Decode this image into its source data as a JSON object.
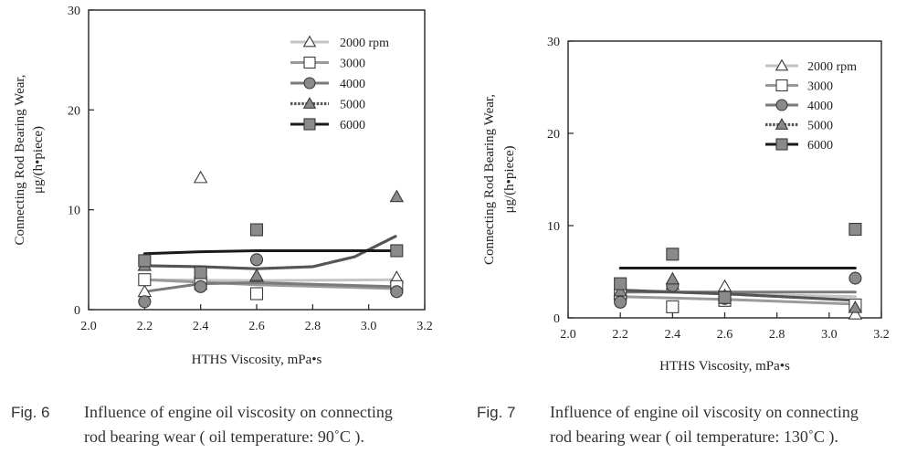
{
  "chart_data": [
    {
      "type": "scatter",
      "figure_label": "Fig. 6",
      "caption": "Influence of engine oil viscosity on connecting rod bearing wear ( oil temperature: 90˚C ).",
      "caption_lines": [
        "Influence of engine oil viscosity on connecting",
        "rod bearing wear ( oil temperature: 90˚C )."
      ],
      "xlabel": "HTHS Viscosity, mPa•s",
      "ylabel_lines": [
        "Connecting Rod Bearing Wear,",
        "μg/(h•piece)"
      ],
      "xlim": [
        2.0,
        3.2
      ],
      "ylim": [
        0,
        30
      ],
      "x_ticks": [
        "2.0",
        "2.2",
        "2.4",
        "2.6",
        "2.8",
        "3.0",
        "3.2"
      ],
      "y_ticks": [
        "0",
        "10",
        "20",
        "30"
      ],
      "grid": false,
      "legend_position": "top-right",
      "series": [
        {
          "name": "2000 rpm",
          "marker": "triangle-open",
          "line_color": "#c4c4c4",
          "line_style": "solid",
          "points": [
            [
              2.2,
              1.8
            ],
            [
              2.4,
              13.2
            ],
            [
              2.6,
              3.3
            ],
            [
              3.1,
              3.2
            ]
          ],
          "fit": [
            [
              2.2,
              3.0
            ],
            [
              2.6,
              2.9
            ],
            [
              3.1,
              3.0
            ]
          ]
        },
        {
          "name": "3000",
          "marker": "square-open",
          "line_color": "#9a9a9a",
          "line_style": "solid",
          "points": [
            [
              2.2,
              3.0
            ],
            [
              2.4,
              2.6
            ],
            [
              2.6,
              1.6
            ],
            [
              3.1,
              2.3
            ]
          ],
          "fit": [
            [
              2.2,
              3.0
            ],
            [
              2.6,
              2.5
            ],
            [
              3.1,
              2.1
            ]
          ]
        },
        {
          "name": "4000",
          "marker": "circle-filled",
          "line_color": "#7a7a7a",
          "line_style": "solid",
          "points": [
            [
              2.2,
              0.8
            ],
            [
              2.4,
              2.3
            ],
            [
              2.6,
              5.0
            ],
            [
              3.1,
              1.8
            ]
          ],
          "fit": [
            [
              2.2,
              1.8
            ],
            [
              2.4,
              2.6
            ],
            [
              2.6,
              2.7
            ],
            [
              3.1,
              2.3
            ]
          ]
        },
        {
          "name": "5000",
          "marker": "triangle-filled",
          "line_color": "#555555",
          "line_style": "dashed",
          "points": [
            [
              2.2,
              4.4
            ],
            [
              2.4,
              3.7
            ],
            [
              2.6,
              3.4
            ],
            [
              3.1,
              11.3
            ]
          ],
          "fit": [
            [
              2.2,
              4.4
            ],
            [
              2.4,
              4.3
            ],
            [
              2.6,
              4.1
            ],
            [
              2.8,
              4.3
            ],
            [
              2.95,
              5.3
            ],
            [
              3.1,
              7.4
            ]
          ]
        },
        {
          "name": "6000",
          "marker": "square-filled",
          "line_color": "#1a1a1a",
          "line_style": "solid",
          "points": [
            [
              2.2,
              4.9
            ],
            [
              2.4,
              3.7
            ],
            [
              2.6,
              8.0
            ],
            [
              3.1,
              5.9
            ]
          ],
          "fit": [
            [
              2.2,
              5.6
            ],
            [
              2.4,
              5.8
            ],
            [
              2.6,
              5.9
            ],
            [
              3.1,
              5.9
            ]
          ]
        }
      ]
    },
    {
      "type": "scatter",
      "figure_label": "Fig. 7",
      "caption": "Influence of engine oil viscosity on connecting rod bearing wear ( oil temperature: 130˚C ).",
      "caption_lines": [
        "Influence of engine oil viscosity on connecting",
        "rod bearing wear ( oil temperature: 130˚C )."
      ],
      "xlabel": "HTHS Viscosity, mPa•s",
      "ylabel_lines": [
        "Connecting Rod Bearing Wear,",
        "μg/(h•piece)"
      ],
      "xlim": [
        2.0,
        3.2
      ],
      "ylim": [
        0,
        30
      ],
      "x_ticks": [
        "2.0",
        "2.2",
        "2.4",
        "2.6",
        "2.8",
        "3.0",
        "3.2"
      ],
      "y_ticks": [
        "0",
        "10",
        "20",
        "30"
      ],
      "grid": false,
      "legend_position": "top-right",
      "series": [
        {
          "name": "2000 rpm",
          "marker": "triangle-open",
          "line_color": "#c4c4c4",
          "line_style": "solid",
          "points": [
            [
              2.2,
              2.6
            ],
            [
              2.4,
              3.6
            ],
            [
              2.6,
              3.4
            ],
            [
              3.1,
              0.4
            ]
          ],
          "fit": [
            [
              2.2,
              3.0
            ],
            [
              2.6,
              2.6
            ],
            [
              3.1,
              2.3
            ]
          ]
        },
        {
          "name": "3000",
          "marker": "square-open",
          "line_color": "#9a9a9a",
          "line_style": "solid",
          "points": [
            [
              2.2,
              2.5
            ],
            [
              2.4,
              1.2
            ],
            [
              2.6,
              1.9
            ],
            [
              3.1,
              1.4
            ]
          ],
          "fit": [
            [
              2.2,
              2.3
            ],
            [
              2.6,
              2.0
            ],
            [
              3.1,
              1.5
            ]
          ]
        },
        {
          "name": "4000",
          "marker": "circle-filled",
          "line_color": "#7a7a7a",
          "line_style": "solid",
          "points": [
            [
              2.2,
              1.7
            ],
            [
              2.4,
              3.5
            ],
            [
              2.6,
              2.1
            ],
            [
              3.1,
              4.3
            ]
          ],
          "fit": [
            [
              2.2,
              2.8
            ],
            [
              2.6,
              2.8
            ],
            [
              3.1,
              2.8
            ]
          ]
        },
        {
          "name": "5000",
          "marker": "triangle-filled",
          "line_color": "#555555",
          "line_style": "dashed",
          "points": [
            [
              2.2,
              2.9
            ],
            [
              2.4,
              4.2
            ],
            [
              2.6,
              2.4
            ],
            [
              3.1,
              1.1
            ]
          ],
          "fit": [
            [
              2.2,
              3.0
            ],
            [
              2.6,
              2.6
            ],
            [
              3.1,
              1.9
            ]
          ]
        },
        {
          "name": "6000",
          "marker": "square-filled",
          "line_color": "#1a1a1a",
          "line_style": "solid",
          "points": [
            [
              2.2,
              3.7
            ],
            [
              2.4,
              6.9
            ],
            [
              2.6,
              2.2
            ],
            [
              3.1,
              9.6
            ]
          ],
          "fit": [
            [
              2.2,
              5.4
            ],
            [
              3.1,
              5.4
            ]
          ]
        }
      ]
    }
  ]
}
